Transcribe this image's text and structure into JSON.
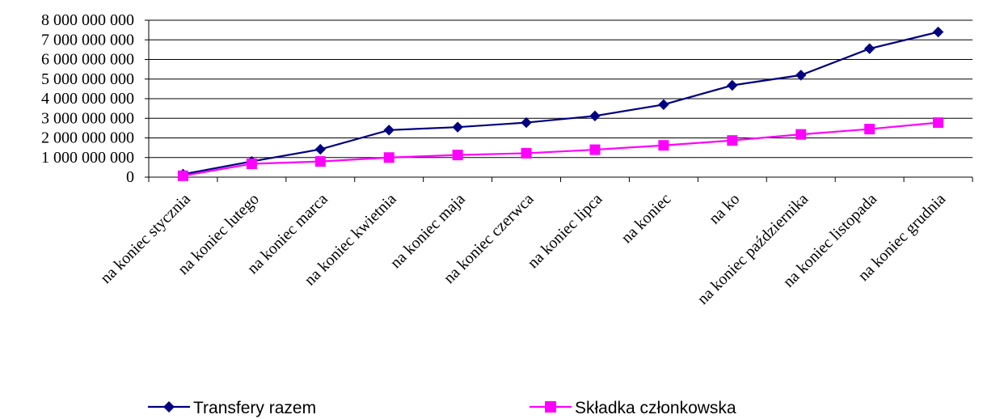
{
  "chart_data": {
    "type": "line",
    "categories": [
      "na koniec stycznia",
      "na koniec lutego",
      "na koniec marca",
      "na koniec kwietnia",
      "na koniec maja",
      "na koniec czerwca",
      "na koniec lipca",
      "na koniec",
      "na ko",
      "na koniec października",
      "na koniec listopada",
      "na koniec grudnia"
    ],
    "series": [
      {
        "name": "Transfery razem",
        "color": "#000080",
        "marker": "diamond",
        "values": [
          150000000,
          800000000,
          1420000000,
          2400000000,
          2550000000,
          2780000000,
          3120000000,
          3700000000,
          4680000000,
          5200000000,
          6550000000,
          7400000000
        ]
      },
      {
        "name": "Składka członkowska",
        "color": "#ff00ff",
        "marker": "square",
        "values": [
          70000000,
          680000000,
          800000000,
          1000000000,
          1130000000,
          1220000000,
          1400000000,
          1620000000,
          1870000000,
          2180000000,
          2450000000,
          2780000000
        ]
      }
    ],
    "yticks": [
      "0",
      "1 000 000 000",
      "2 000 000 000",
      "3 000 000 000",
      "4 000 000 000",
      "5 000 000 000",
      "6 000 000 000",
      "7 000 000 000",
      "8 000 000 000"
    ],
    "ylim": [
      0,
      8000000000
    ],
    "grid": true,
    "legend_position": "bottom"
  }
}
